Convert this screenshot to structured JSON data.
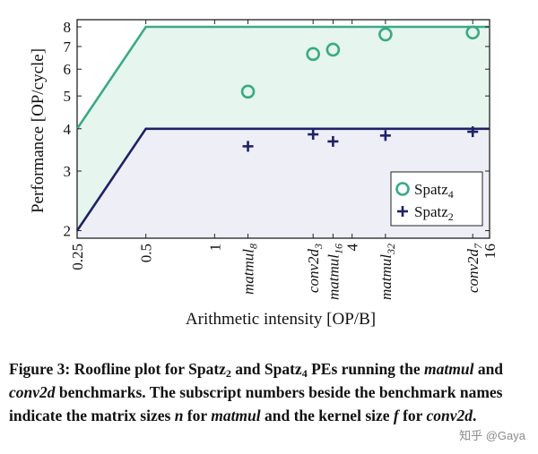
{
  "chart_data": {
    "type": "scatter",
    "subtype": "roofline",
    "xscale": "log2",
    "yscale": "log2",
    "xlim": [
      0.25,
      16
    ],
    "ylim": [
      1.9,
      8.4
    ],
    "xlabel": "Arithmetic intensity [OP/B]",
    "ylabel": "Performance [OP/cycle]",
    "x_ticks": [
      {
        "value": 0.25,
        "label": "0.25"
      },
      {
        "value": 0.5,
        "label": "0.5"
      },
      {
        "value": 1,
        "label": "1"
      },
      {
        "value": 4,
        "label": "4"
      },
      {
        "value": 16,
        "label": "16"
      }
    ],
    "y_ticks": [
      {
        "value": 2,
        "label": "2"
      },
      {
        "value": 3,
        "label": "3"
      },
      {
        "value": 4,
        "label": "4"
      },
      {
        "value": 5,
        "label": "5"
      },
      {
        "value": 6,
        "label": "6"
      },
      {
        "value": 7,
        "label": "7"
      },
      {
        "value": 8,
        "label": "8"
      }
    ],
    "benchmarks": [
      {
        "name": "matmul",
        "sub": "8",
        "x": 1.4
      },
      {
        "name": "conv2d",
        "sub": "3",
        "x": 2.7
      },
      {
        "name": "matmul",
        "sub": "16",
        "x": 3.3
      },
      {
        "name": "matmul",
        "sub": "32",
        "x": 5.6
      },
      {
        "name": "conv2d",
        "sub": "7",
        "x": 13.5
      }
    ],
    "rooflines": [
      {
        "name": "Spatz",
        "sub": "4",
        "color": "#3aaa86",
        "fill": "#e6f5ee",
        "points": [
          [
            0.25,
            4
          ],
          [
            0.5,
            8
          ],
          [
            16,
            8
          ]
        ]
      },
      {
        "name": "Spatz",
        "sub": "2",
        "color": "#1e2266",
        "fill": "#eeeef6",
        "points": [
          [
            0.25,
            2
          ],
          [
            0.5,
            4
          ],
          [
            16,
            4
          ]
        ]
      }
    ],
    "series": [
      {
        "name": "Spatz",
        "sub": "4",
        "marker": "circle",
        "color": "#3aaa86",
        "x": [
          1.4,
          2.7,
          3.3,
          5.6,
          13.5
        ],
        "y": [
          5.15,
          6.65,
          6.85,
          7.6,
          7.7
        ]
      },
      {
        "name": "Spatz",
        "sub": "2",
        "marker": "plus",
        "color": "#1e2266",
        "x": [
          1.4,
          2.7,
          3.3,
          5.6,
          13.5
        ],
        "y": [
          3.55,
          3.85,
          3.67,
          3.82,
          3.92
        ]
      }
    ],
    "legend_position": "bottom-right"
  },
  "caption": {
    "label": "Figure 3:",
    "parts": [
      {
        "t": " Roofline plot for Spatz"
      },
      {
        "t": "2",
        "s": "sub"
      },
      {
        "t": " and Spatz"
      },
      {
        "t": "4",
        "s": "sub"
      },
      {
        "t": " PEs running the "
      },
      {
        "t": "matmul",
        "s": "i"
      },
      {
        "t": " and "
      },
      {
        "t": "conv2d",
        "s": "i"
      },
      {
        "t": " benchmarks. The subscript numbers be­side the benchmark names indicate the matrix sizes "
      },
      {
        "t": "n",
        "s": "i"
      },
      {
        "t": " for "
      },
      {
        "t": "matmul",
        "s": "i"
      },
      {
        "t": " and the kernel size "
      },
      {
        "t": "f",
        "s": "i"
      },
      {
        "t": " for "
      },
      {
        "t": "conv2d",
        "s": "i"
      },
      {
        "t": "."
      }
    ]
  },
  "watermark": "知乎 @Gaya"
}
